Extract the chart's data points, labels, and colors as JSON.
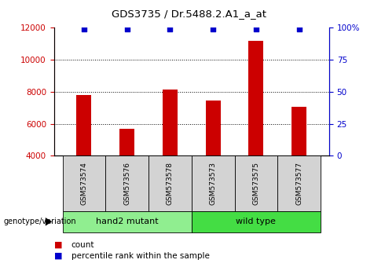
{
  "title": "GDS3735 / Dr.5488.2.A1_a_at",
  "samples": [
    "GSM573574",
    "GSM573576",
    "GSM573578",
    "GSM573573",
    "GSM573575",
    "GSM573577"
  ],
  "counts": [
    7800,
    5700,
    8150,
    7450,
    11200,
    7050
  ],
  "percentile_ranks": [
    99,
    99,
    99,
    99,
    99,
    99
  ],
  "ylim_left": [
    4000,
    12000
  ],
  "yticks_left": [
    4000,
    6000,
    8000,
    10000,
    12000
  ],
  "ylim_right": [
    0,
    100
  ],
  "yticks_right": [
    0,
    25,
    50,
    75,
    100
  ],
  "yticklabels_right": [
    "0",
    "25",
    "50",
    "75",
    "100%"
  ],
  "bar_color": "#cc0000",
  "dot_color": "#0000cc",
  "groups": [
    {
      "label": "hand2 mutant",
      "indices": [
        0,
        1,
        2
      ],
      "color": "#90ee90"
    },
    {
      "label": "wild type",
      "indices": [
        3,
        4,
        5
      ],
      "color": "#44dd44"
    }
  ],
  "genotype_label": "genotype/variation",
  "legend_count_label": "count",
  "legend_percentile_label": "percentile rank within the sample",
  "background_color": "#ffffff",
  "plot_bg_color": "#ffffff",
  "grid_yticks": [
    6000,
    8000,
    10000
  ],
  "bar_width": 0.35,
  "label_area_color": "#d3d3d3"
}
